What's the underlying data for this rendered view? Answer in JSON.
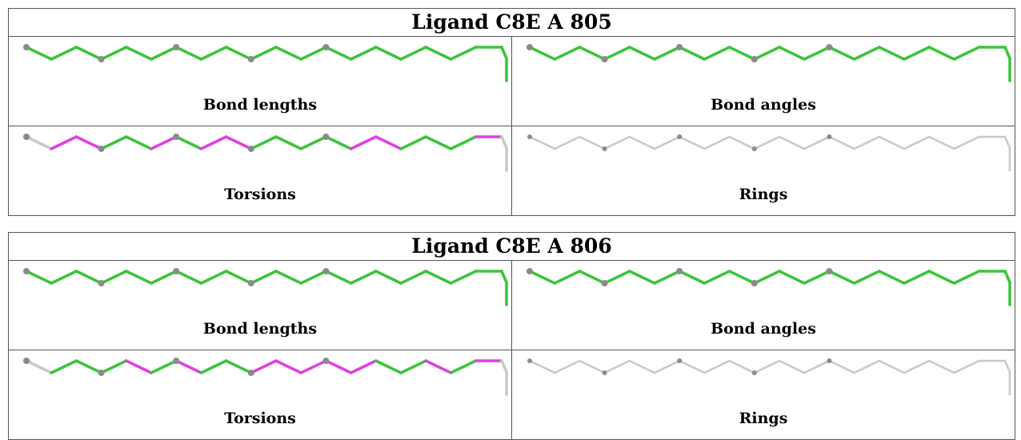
{
  "ligands": [
    {
      "title": "Ligand C8E A 805",
      "panels": [
        {
          "label": "Bond lengths",
          "colors": [
            "green",
            "green",
            "green",
            "green",
            "green",
            "green",
            "green",
            "green",
            "green",
            "green",
            "green",
            "green",
            "green",
            "green",
            "green",
            "green",
            "green",
            "green",
            "green",
            "green"
          ]
        },
        {
          "label": "Bond angles",
          "colors": [
            "green",
            "green",
            "green",
            "green",
            "green",
            "green",
            "green",
            "green",
            "green",
            "green",
            "green",
            "green",
            "green",
            "green",
            "green",
            "green",
            "green",
            "green",
            "green",
            "green"
          ]
        },
        {
          "label": "Torsions",
          "colors": [
            "gray",
            "magenta",
            "magenta",
            "green",
            "green",
            "magenta",
            "green",
            "magenta",
            "magenta",
            "green",
            "green",
            "green",
            "green",
            "magenta",
            "magenta",
            "green",
            "green",
            "green",
            "magenta",
            "gray"
          ]
        },
        {
          "label": "Rings",
          "colors": [
            "gray",
            "gray",
            "gray",
            "gray",
            "gray",
            "gray",
            "gray",
            "gray",
            "gray",
            "gray",
            "gray",
            "gray",
            "gray",
            "gray",
            "gray",
            "gray",
            "gray",
            "gray",
            "gray",
            "gray"
          ]
        }
      ]
    },
    {
      "title": "Ligand C8E A 806",
      "panels": [
        {
          "label": "Bond lengths",
          "colors": [
            "green",
            "green",
            "green",
            "green",
            "green",
            "green",
            "green",
            "green",
            "green",
            "green",
            "green",
            "green",
            "green",
            "green",
            "green",
            "green",
            "green",
            "green",
            "green",
            "green"
          ]
        },
        {
          "label": "Bond angles",
          "colors": [
            "green",
            "green",
            "green",
            "green",
            "green",
            "green",
            "green",
            "green",
            "green",
            "green",
            "green",
            "green",
            "green",
            "green",
            "green",
            "green",
            "green",
            "green",
            "green",
            "green"
          ]
        },
        {
          "label": "Torsions",
          "colors": [
            "gray",
            "green",
            "green",
            "green",
            "magenta",
            "green",
            "magenta",
            "green",
            "green",
            "magenta",
            "magenta",
            "magenta",
            "magenta",
            "magenta",
            "green",
            "green",
            "magenta",
            "green",
            "magenta",
            "gray"
          ]
        },
        {
          "label": "Rings",
          "colors": [
            "gray",
            "gray",
            "gray",
            "gray",
            "gray",
            "gray",
            "gray",
            "gray",
            "gray",
            "gray",
            "gray",
            "gray",
            "gray",
            "gray",
            "gray",
            "gray",
            "gray",
            "gray",
            "gray",
            "gray"
          ]
        }
      ]
    }
  ],
  "palette": {
    "green": "#3cc43c",
    "magenta": "#e040e0",
    "gray": "#c8c8c8",
    "atom": "#8a8a8a"
  },
  "oxygen_atom_indices": [
    0,
    3,
    6,
    9,
    12
  ]
}
